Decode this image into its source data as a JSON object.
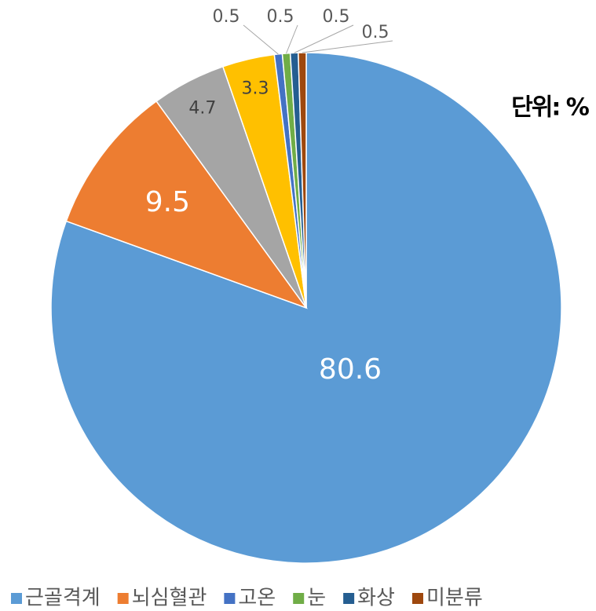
{
  "chart_data": {
    "type": "pie",
    "unit_label": "단위: %",
    "categories": [
      "근골격계",
      "뇌심혈관",
      null,
      null,
      "고온",
      "눈",
      "화상",
      "미분류"
    ],
    "values": [
      80.6,
      9.5,
      4.7,
      3.3,
      0.5,
      0.5,
      0.5,
      0.5
    ],
    "colors": [
      "#5b9bd5",
      "#ed7d31",
      "#a5a5a5",
      "#ffc000",
      "#4472c4",
      "#70ad47",
      "#255e91",
      "#9e480e"
    ],
    "legend": "bottom"
  }
}
